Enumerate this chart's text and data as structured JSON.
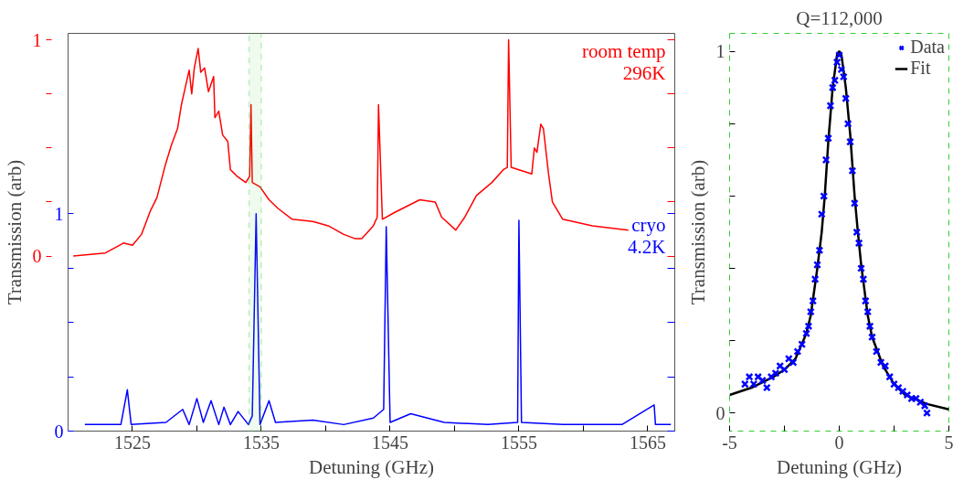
{
  "chart_data": [
    {
      "type": "line",
      "xlabel": "Detuning (GHz)",
      "ylabel": "Transmission (arb)",
      "xlim": [
        1520,
        1567.1
      ],
      "xticks": [
        1525,
        {
          "value": 1530,
          "label": null
        },
        1535,
        {
          "value": 1540,
          "label": null
        },
        1545,
        {
          "value": 1550,
          "label": null
        },
        1555,
        {
          "value": 1560,
          "label": null
        },
        1565
      ],
      "ylim": [
        -0.81,
        1.03
      ],
      "yticks": [
        0,
        {
          "value": 0.25,
          "label": null
        },
        {
          "value": 0.5,
          "label": null
        },
        {
          "value": 0.75,
          "label": null
        },
        1
      ],
      "y2lim": [
        0,
        1.83
      ],
      "y2ticks": [
        0,
        {
          "value": 0.25,
          "label": null
        },
        {
          "value": 0.5,
          "label": null
        },
        {
          "value": 0.75,
          "label": null
        },
        1
      ],
      "grid": false,
      "legend": "right",
      "bands": [
        {
          "axis": "x",
          "from": 1534.05,
          "to": 1535.0,
          "color": "#33cc33"
        }
      ],
      "series": [
        {
          "name": "room temp\n296K",
          "color": "#ff0000",
          "x": [
            1520.4,
            1522.9,
            1524.3,
            1525,
            1525.7,
            1526.4,
            1526.9,
            1527.5,
            1528.0,
            1528.5,
            1528.8,
            1529.1,
            1529.4,
            1529.6,
            1529.8,
            1530.1,
            1530.3,
            1530.6,
            1530.9,
            1531.3,
            1531.4,
            1531.7,
            1532.0,
            1532.4,
            1532.6,
            1533.1,
            1533.8,
            1534.1,
            1534.2,
            1534.3,
            1534.9,
            1535.6,
            1536.3,
            1537.4,
            1539.0,
            1540.2,
            1541.4,
            1542.3,
            1542.8,
            1543.7,
            1544.0,
            1544.1,
            1544.4,
            1545.3,
            1547.3,
            1548.5,
            1549.0,
            1550.1,
            1550.8,
            1551.7,
            1552.9,
            1553.8,
            1554.1,
            1554.2,
            1554.4,
            1556.0,
            1556.2,
            1556.4,
            1556.7,
            1556.9,
            1557.3,
            1557.6,
            1558.4,
            1560.7,
            1563.5
          ],
          "values": [
            0,
            0.014,
            0.06,
            0.05,
            0.1,
            0.21,
            0.27,
            0.41,
            0.51,
            0.59,
            0.7,
            0.78,
            0.86,
            0.75,
            0.87,
            0.96,
            0.85,
            0.87,
            0.76,
            0.83,
            0.64,
            0.67,
            0.56,
            0.53,
            0.4,
            0.37,
            0.34,
            0.37,
            0.7,
            0.34,
            0.32,
            0.26,
            0.22,
            0.17,
            0.16,
            0.14,
            0.1,
            0.08,
            0.08,
            0.14,
            0.18,
            0.7,
            0.17,
            0.2,
            0.26,
            0.25,
            0.18,
            0.12,
            0.18,
            0.28,
            0.34,
            0.4,
            0.41,
            1.0,
            0.41,
            0.38,
            0.5,
            0.48,
            0.61,
            0.59,
            0.38,
            0.25,
            0.17,
            0.14,
            0.12
          ]
        },
        {
          "name": "cryo\n4.2K",
          "color": "#0000ff",
          "axis": "y2",
          "x": [
            1521.3,
            1524.1,
            1524.6,
            1524.9,
            1527.6,
            1528.9,
            1529.4,
            1530.0,
            1530.5,
            1531.1,
            1531.7,
            1532.1,
            1532.6,
            1533.2,
            1534.0,
            1534.3,
            1534.6,
            1534.9,
            1535.6,
            1536.1,
            1539.0,
            1541.4,
            1543.7,
            1544.5,
            1544.7,
            1545.0,
            1546.6,
            1549.2,
            1552.6,
            1554.9,
            1555.0,
            1555.2,
            1558.4,
            1563.0,
            1565.5,
            1565.6,
            1566.8
          ],
          "values": [
            0.03,
            0.03,
            0.19,
            0.03,
            0.04,
            0.1,
            0.03,
            0.15,
            0.04,
            0.14,
            0.03,
            0.11,
            0.03,
            0.09,
            0.03,
            0.07,
            1.0,
            0.03,
            0.14,
            0.04,
            0.05,
            0.03,
            0.06,
            0.1,
            0.94,
            0.04,
            0.08,
            0.04,
            0.03,
            0.04,
            0.97,
            0.04,
            0.03,
            0.03,
            0.12,
            0.03,
            0.03
          ]
        }
      ]
    },
    {
      "type": "scatter",
      "title": "Q=112,000",
      "xlabel": "Detuning (GHz)",
      "ylabel": "Transmission (arb)",
      "xlim": [
        -5,
        5
      ],
      "xticks": [
        -5,
        {
          "value": -2.5,
          "label": null
        },
        0,
        {
          "value": 2.5,
          "label": null
        },
        5
      ],
      "ylim": [
        -0.05,
        1.05
      ],
      "yticks": [
        0,
        {
          "value": 0.2,
          "label": null
        },
        {
          "value": 0.4,
          "label": null
        },
        {
          "value": 0.6,
          "label": null
        },
        {
          "value": 0.8,
          "label": null
        },
        1
      ],
      "grid": false,
      "legend": "top right",
      "series": [
        {
          "name": "Data",
          "color": "#0000ff",
          "marker": "cross",
          "x": [
            -4.3,
            -4.1,
            -3.9,
            -3.7,
            -3.5,
            -3.3,
            -3.1,
            -2.9,
            -2.7,
            -2.5,
            -2.3,
            -2.1,
            -1.9,
            -1.7,
            -1.5,
            -1.4,
            -1.3,
            -1.2,
            -1.1,
            -1.0,
            -0.9,
            -0.8,
            -0.7,
            -0.6,
            -0.5,
            -0.4,
            -0.3,
            -0.2,
            -0.1,
            0,
            0.1,
            0.2,
            0.3,
            0.4,
            0.5,
            0.6,
            0.7,
            0.8,
            0.9,
            1.0,
            1.1,
            1.2,
            1.3,
            1.4,
            1.5,
            1.7,
            1.9,
            2.1,
            2.3,
            2.5,
            2.7,
            2.9,
            3.1,
            3.3,
            3.5,
            3.7,
            3.9,
            4.0
          ],
          "values": [
            0.08,
            0.1,
            0.08,
            0.1,
            0.09,
            0.07,
            0.1,
            0.11,
            0.13,
            0.12,
            0.15,
            0.14,
            0.17,
            0.19,
            0.22,
            0.24,
            0.28,
            0.31,
            0.37,
            0.41,
            0.45,
            0.55,
            0.6,
            0.7,
            0.76,
            0.85,
            0.9,
            0.92,
            0.97,
            0.99,
            0.95,
            0.93,
            0.87,
            0.8,
            0.75,
            0.67,
            0.58,
            0.5,
            0.47,
            0.4,
            0.37,
            0.31,
            0.28,
            0.24,
            0.21,
            0.17,
            0.14,
            0.13,
            0.1,
            0.08,
            0.07,
            0.06,
            0.05,
            0.04,
            0.04,
            0.03,
            0.02,
            0.0
          ]
        },
        {
          "name": "Fit",
          "type": "line",
          "color": "#000000",
          "x": [
            -5,
            -4,
            -3,
            -2.5,
            -2,
            -1.5,
            -1.3,
            -1,
            -0.8,
            -0.66,
            -0.5,
            -0.3,
            -0.1,
            0,
            0.1,
            0.3,
            0.5,
            0.7,
            0.85,
            1,
            1.3,
            1.5,
            2,
            2.5,
            3,
            4,
            5
          ],
          "values": [
            0.05,
            0.07,
            0.1,
            0.12,
            0.15,
            0.22,
            0.27,
            0.4,
            0.5,
            0.6,
            0.75,
            0.9,
            0.99,
            1.0,
            0.99,
            0.9,
            0.77,
            0.6,
            0.5,
            0.41,
            0.27,
            0.21,
            0.13,
            0.08,
            0.05,
            0.025,
            0.01
          ]
        }
      ]
    }
  ]
}
